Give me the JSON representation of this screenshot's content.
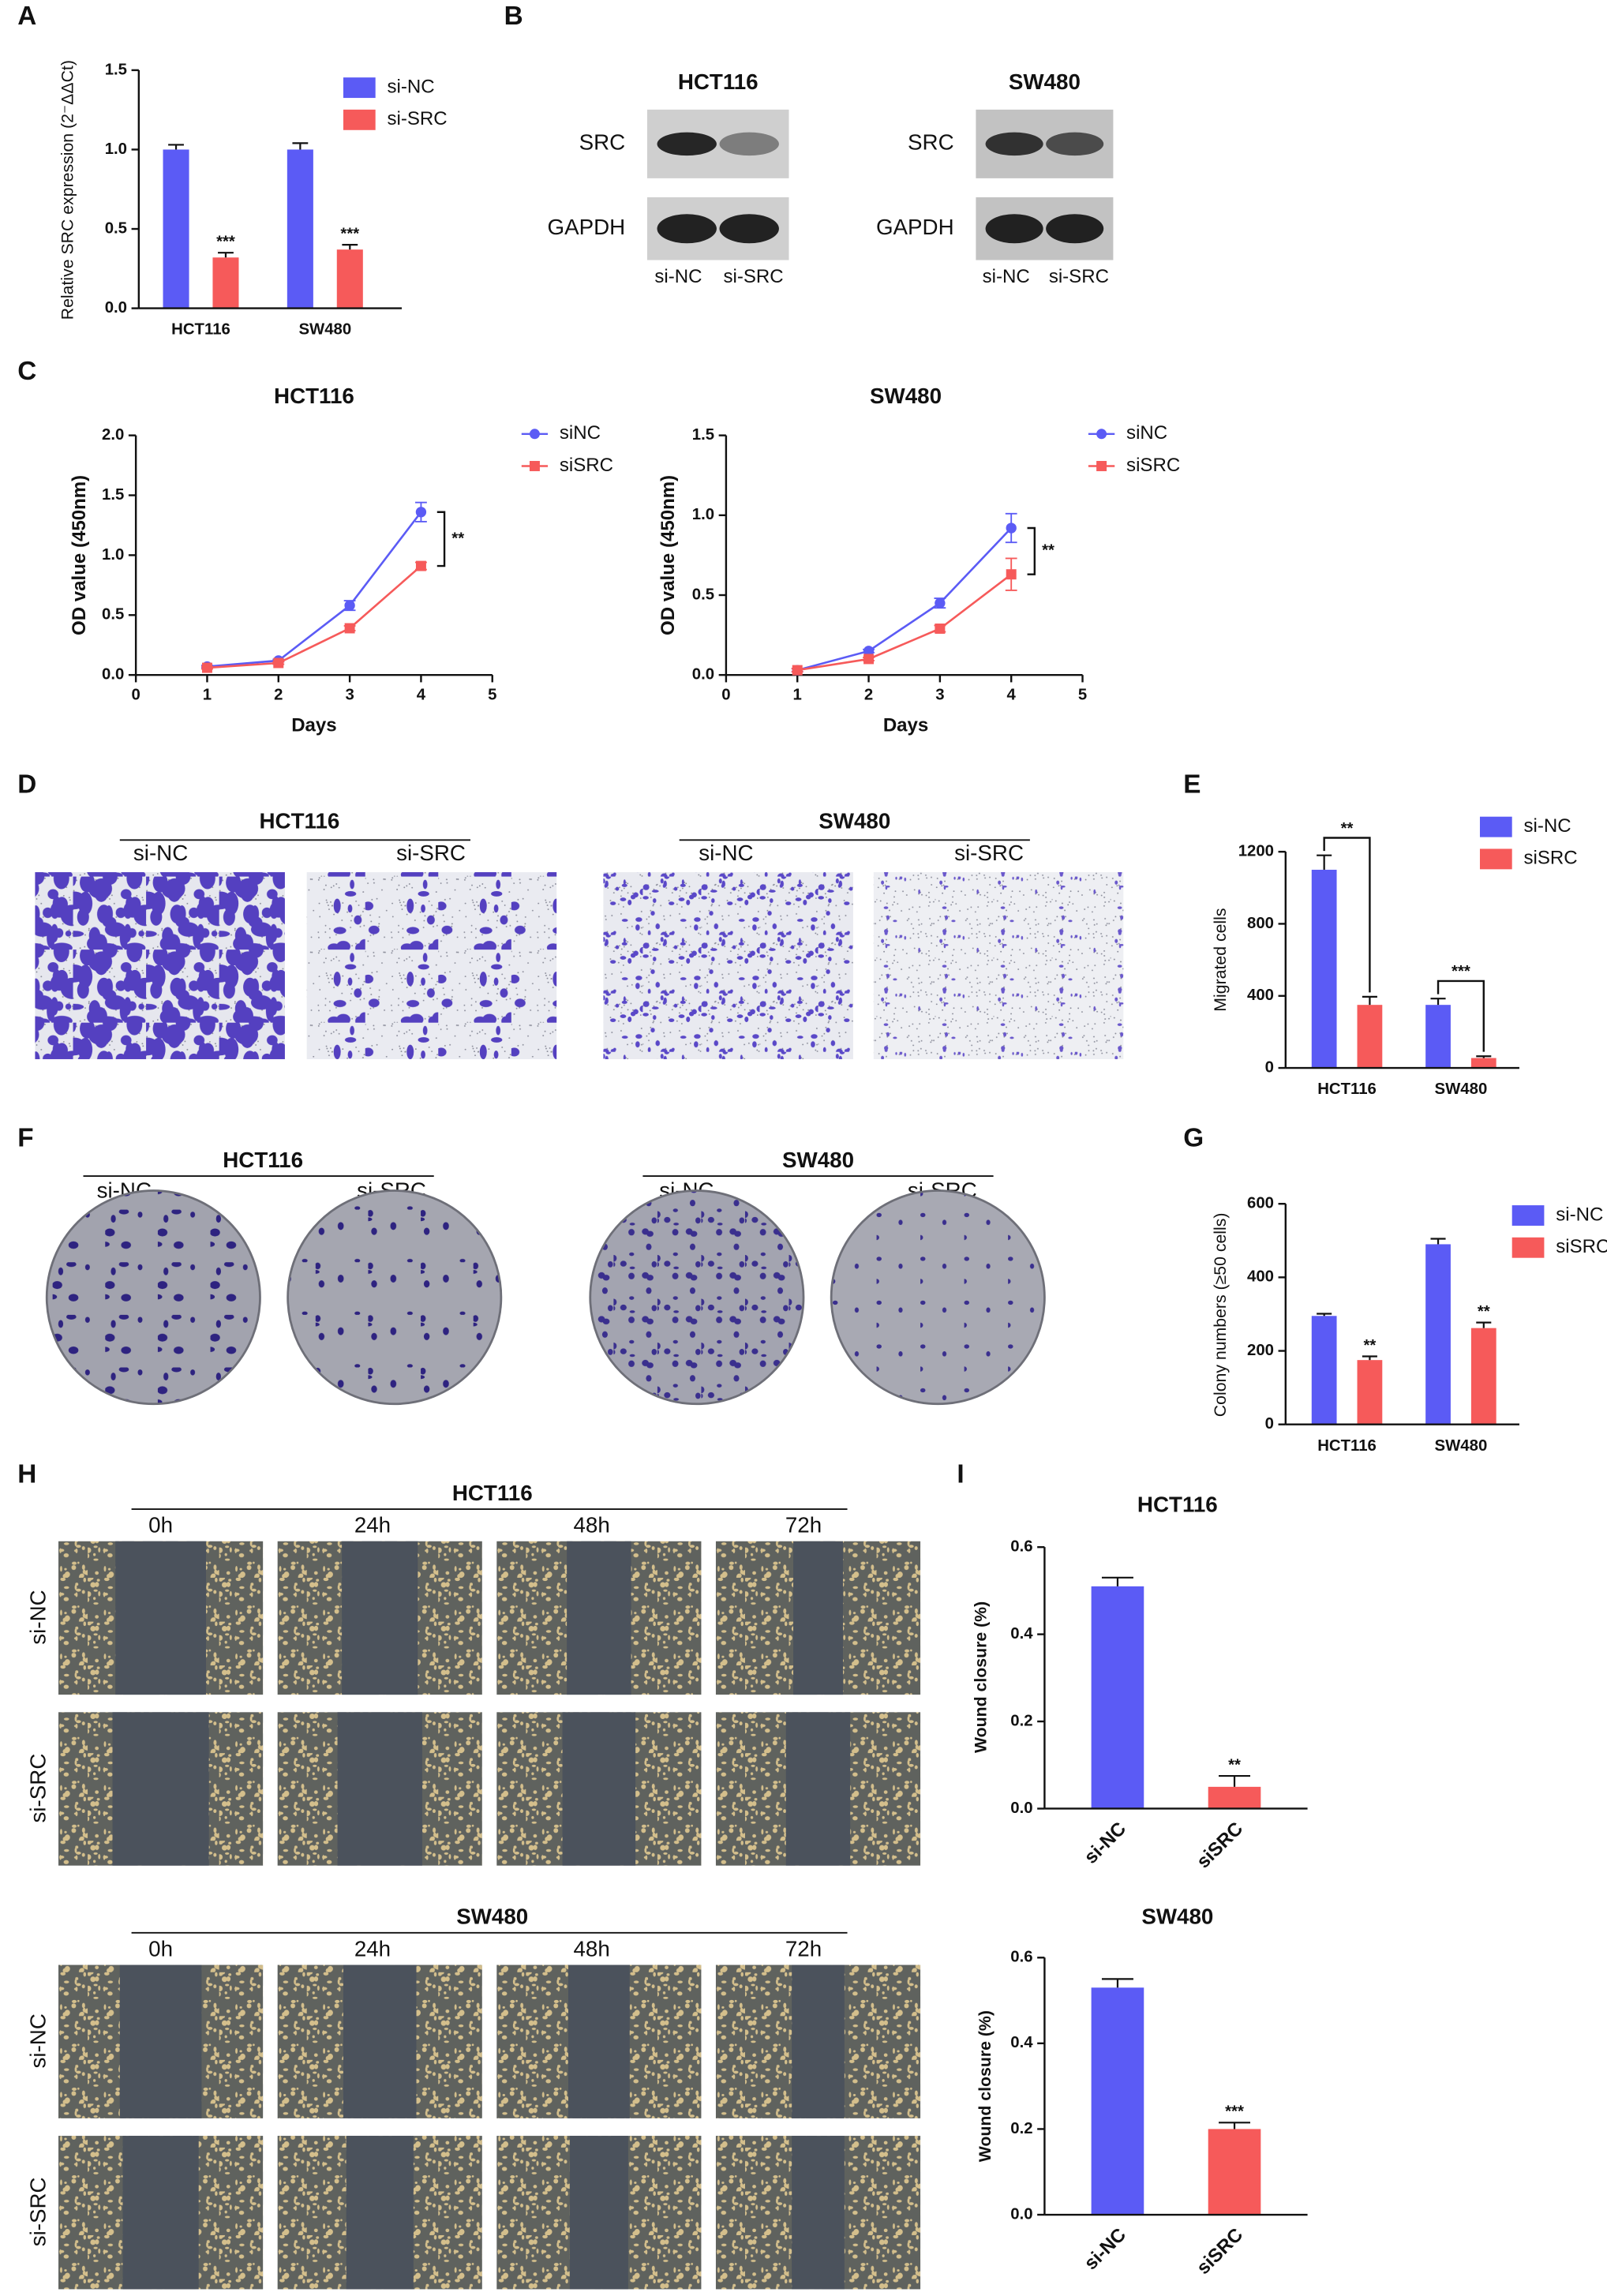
{
  "panel_labels": [
    "A",
    "B",
    "C",
    "D",
    "E",
    "F",
    "G",
    "H",
    "I"
  ],
  "blots": {
    "cell_lines": [
      "HCT116",
      "SW480"
    ],
    "proteins": [
      "SRC",
      "GAPDH"
    ],
    "lanes": [
      "si-NC",
      "si-SRC"
    ]
  },
  "transwell": {
    "cell_lines": [
      "HCT116",
      "SW480"
    ],
    "groups": [
      "si-NC",
      "si-SRC"
    ]
  },
  "colony": {
    "cell_lines": [
      "HCT116",
      "SW480"
    ],
    "groups": [
      "si-NC",
      "si-SRC"
    ]
  },
  "wound": {
    "cell_lines": [
      "HCT116",
      "SW480"
    ],
    "times": [
      "0h",
      "24h",
      "48h",
      "72h"
    ],
    "groups": [
      "si-NC",
      "si-SRC"
    ]
  },
  "chart_data": [
    {
      "type": "bar",
      "ylabel": "Relative SRC expression (2⁻ΔΔCt)",
      "categories": [
        "HCT116",
        "SW480"
      ],
      "series": [
        {
          "name": "si-NC",
          "color": "#5b5bf5",
          "values": [
            1.0,
            1.0
          ],
          "errors": [
            0.03,
            0.04
          ]
        },
        {
          "name": "si-SRC",
          "color": "#f65a5a",
          "values": [
            0.32,
            0.37
          ],
          "errors": [
            0.03,
            0.03
          ],
          "annotations": [
            "***",
            "***"
          ]
        }
      ],
      "ylim": [
        0,
        1.5
      ],
      "yticks": [
        {
          "value": 0,
          "label": "0.0"
        },
        {
          "value": 0.5,
          "label": "0.5"
        },
        {
          "value": 1,
          "label": "1.0"
        },
        {
          "value": 1.5,
          "label": "1.5"
        }
      ],
      "legend": "upper right"
    },
    {
      "type": "line",
      "title": "HCT116",
      "x": [
        1,
        2,
        3,
        4
      ],
      "xlabel": "Days",
      "ylabel": "OD value (450nm)",
      "series": [
        {
          "name": "siNC",
          "color": "#5b5bf5",
          "marker": "circle",
          "values": [
            0.07,
            0.12,
            0.58,
            1.36
          ],
          "errors": [
            0.01,
            0.01,
            0.04,
            0.08
          ]
        },
        {
          "name": "siSRC",
          "color": "#f65a5a",
          "marker": "square",
          "values": [
            0.06,
            0.1,
            0.39,
            0.91
          ],
          "errors": [
            0.01,
            0.01,
            0.02,
            0.03
          ]
        }
      ],
      "xlim": [
        0,
        5
      ],
      "xticks": [
        0,
        1,
        2,
        3,
        4,
        5
      ],
      "ylim": [
        0,
        2
      ],
      "yticks": [
        {
          "value": 0,
          "label": "0.0"
        },
        {
          "value": 0.5,
          "label": "0.5"
        },
        {
          "value": 1,
          "label": "1.0"
        },
        {
          "value": 1.5,
          "label": "1.5"
        },
        {
          "value": 2,
          "label": "2.0"
        }
      ],
      "annotation": "**",
      "legend": "upper right"
    },
    {
      "type": "line",
      "title": "SW480",
      "x": [
        1,
        2,
        3,
        4
      ],
      "xlabel": "Days",
      "ylabel": "OD value (450nm)",
      "series": [
        {
          "name": "siNC",
          "color": "#5b5bf5",
          "marker": "circle",
          "values": [
            0.03,
            0.15,
            0.45,
            0.92
          ],
          "errors": [
            0.01,
            0.01,
            0.03,
            0.09
          ]
        },
        {
          "name": "siSRC",
          "color": "#f65a5a",
          "marker": "square",
          "values": [
            0.03,
            0.1,
            0.29,
            0.63
          ],
          "errors": [
            0.01,
            0.01,
            0.02,
            0.1
          ]
        }
      ],
      "xlim": [
        0,
        5
      ],
      "xticks": [
        0,
        1,
        2,
        3,
        4,
        5
      ],
      "ylim": [
        0,
        1.5
      ],
      "yticks": [
        {
          "value": 0,
          "label": "0.0"
        },
        {
          "value": 0.5,
          "label": "0.5"
        },
        {
          "value": 1,
          "label": "1.0"
        },
        {
          "value": 1.5,
          "label": "1.5"
        }
      ],
      "annotation": "**",
      "legend": "upper right"
    },
    {
      "type": "bar",
      "ylabel": "Migrated cells",
      "categories": [
        "HCT116",
        "SW480"
      ],
      "series": [
        {
          "name": "si-NC",
          "color": "#5b5bf5",
          "values": [
            1100,
            350
          ],
          "errors": [
            80,
            35
          ]
        },
        {
          "name": "siSRC",
          "color": "#f65a5a",
          "values": [
            350,
            55
          ],
          "errors": [
            45,
            10
          ]
        }
      ],
      "comparisons": [
        "**",
        "***"
      ],
      "ylim": [
        0,
        1200
      ],
      "yticks": [
        0,
        400,
        800,
        1200
      ],
      "legend": "upper right"
    },
    {
      "type": "bar",
      "ylabel": "Colony numbers (≥50 cells)",
      "categories": [
        "HCT116",
        "SW480"
      ],
      "series": [
        {
          "name": "si-NC",
          "color": "#5b5bf5",
          "values": [
            295,
            490
          ],
          "errors": [
            6,
            15
          ]
        },
        {
          "name": "siSRC",
          "color": "#f65a5a",
          "values": [
            175,
            262
          ],
          "errors": [
            10,
            15
          ],
          "annotations": [
            "**",
            "**"
          ]
        }
      ],
      "ylim": [
        0,
        600
      ],
      "yticks": [
        0,
        200,
        400,
        600
      ],
      "legend": "upper right"
    },
    {
      "type": "bar",
      "title": "HCT116",
      "ylabel": "Wound closure (%)",
      "categories": [
        "si-NC",
        "siSRC"
      ],
      "values": [
        0.51,
        0.05
      ],
      "errors": [
        0.02,
        0.025
      ],
      "colors": [
        "#5b5bf5",
        "#f65a5a"
      ],
      "annotations": [
        null,
        "**"
      ],
      "ylim": [
        0,
        0.6
      ],
      "yticks": [
        {
          "value": 0,
          "label": "0.0"
        },
        {
          "value": 0.2,
          "label": "0.2"
        },
        {
          "value": 0.4,
          "label": "0.4"
        },
        {
          "value": 0.6,
          "label": "0.6"
        }
      ]
    },
    {
      "type": "bar",
      "title": "SW480",
      "ylabel": "Wound closure (%)",
      "categories": [
        "si-NC",
        "siSRC"
      ],
      "values": [
        0.53,
        0.2
      ],
      "errors": [
        0.02,
        0.015
      ],
      "colors": [
        "#5b5bf5",
        "#f65a5a"
      ],
      "annotations": [
        null,
        "***"
      ],
      "ylim": [
        0,
        0.6
      ],
      "yticks": [
        {
          "value": 0,
          "label": "0.0"
        },
        {
          "value": 0.2,
          "label": "0.2"
        },
        {
          "value": 0.4,
          "label": "0.4"
        },
        {
          "value": 0.6,
          "label": "0.6"
        }
      ]
    }
  ]
}
